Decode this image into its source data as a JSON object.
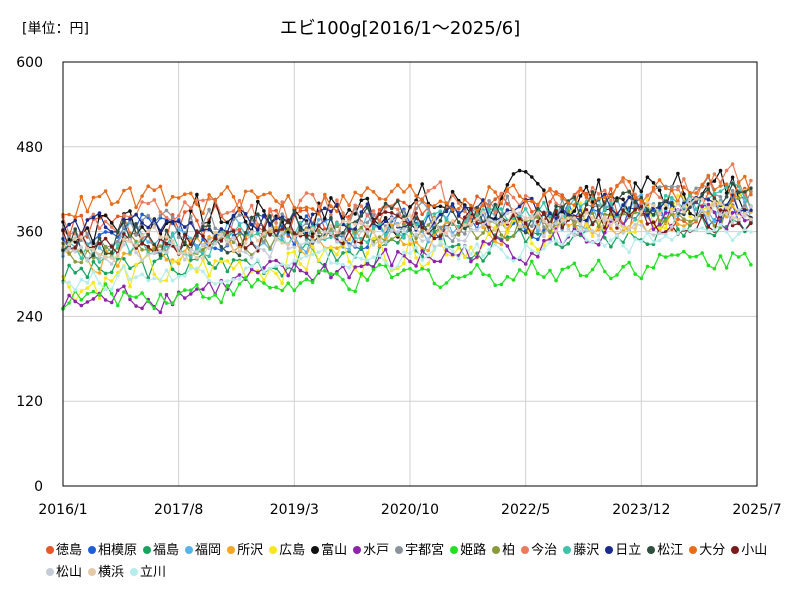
{
  "chart_data": {
    "type": "line",
    "title": "エビ100g[2016/1～2025/6]",
    "unit_label": "[単位：円]",
    "ylim": [
      0,
      600
    ],
    "y_ticks": [
      0,
      120,
      240,
      360,
      480,
      600
    ],
    "x_ticks": [
      "2016/1",
      "2017/8",
      "2019/3",
      "2020/10",
      "2022/5",
      "2023/12",
      "2025/7"
    ],
    "grid": true,
    "legend_position": "bottom",
    "series": [
      {
        "name": "徳島",
        "color": "#e8572a",
        "base": 360,
        "trend": 40,
        "amp": 45,
        "seed": 1
      },
      {
        "name": "相模原",
        "color": "#1f5fd6",
        "base": 355,
        "trend": 35,
        "amp": 40,
        "seed": 2
      },
      {
        "name": "福島",
        "color": "#1aa35f",
        "base": 300,
        "trend": 70,
        "amp": 35,
        "seed": 3
      },
      {
        "name": "福岡",
        "color": "#56b4e9",
        "base": 345,
        "trend": 50,
        "amp": 40,
        "seed": 4
      },
      {
        "name": "所沢",
        "color": "#f5a623",
        "base": 320,
        "trend": 70,
        "amp": 35,
        "seed": 5
      },
      {
        "name": "広島",
        "color": "#f7e71b",
        "base": 285,
        "trend": 110,
        "amp": 45,
        "seed": 6
      },
      {
        "name": "富山",
        "color": "#111111",
        "base": 370,
        "trend": 50,
        "amp": 55,
        "seed": 7
      },
      {
        "name": "水戸",
        "color": "#8e24aa",
        "base": 255,
        "trend": 130,
        "amp": 35,
        "seed": 8
      },
      {
        "name": "宇都宮",
        "color": "#8a939b",
        "base": 350,
        "trend": 60,
        "amp": 45,
        "seed": 9
      },
      {
        "name": "姫路",
        "color": "#22e022",
        "base": 265,
        "trend": 60,
        "amp": 30,
        "seed": 10
      },
      {
        "name": "柏",
        "color": "#8a9a3b",
        "base": 330,
        "trend": 60,
        "amp": 30,
        "seed": 11
      },
      {
        "name": "今治",
        "color": "#e97c5a",
        "base": 370,
        "trend": 60,
        "amp": 40,
        "seed": 12
      },
      {
        "name": "藤沢",
        "color": "#3cc3a8",
        "base": 330,
        "trend": 80,
        "amp": 30,
        "seed": 13
      },
      {
        "name": "日立",
        "color": "#1a2a8c",
        "base": 365,
        "trend": 30,
        "amp": 30,
        "seed": 14
      },
      {
        "name": "松江",
        "color": "#2f4f3f",
        "base": 345,
        "trend": 60,
        "amp": 40,
        "seed": 15
      },
      {
        "name": "大分",
        "color": "#e86b1a",
        "base": 400,
        "trend": 20,
        "amp": 35,
        "seed": 16
      },
      {
        "name": "小山",
        "color": "#7a1b1b",
        "base": 345,
        "trend": 40,
        "amp": 35,
        "seed": 17
      },
      {
        "name": "松山",
        "color": "#c5ccd8",
        "base": 320,
        "trend": 70,
        "amp": 30,
        "seed": 18
      },
      {
        "name": "横浜",
        "color": "#e6c9a8",
        "base": 335,
        "trend": 60,
        "amp": 30,
        "seed": 19
      },
      {
        "name": "立川",
        "color": "#b5ecec",
        "base": 290,
        "trend": 70,
        "amp": 25,
        "seed": 20
      }
    ]
  }
}
